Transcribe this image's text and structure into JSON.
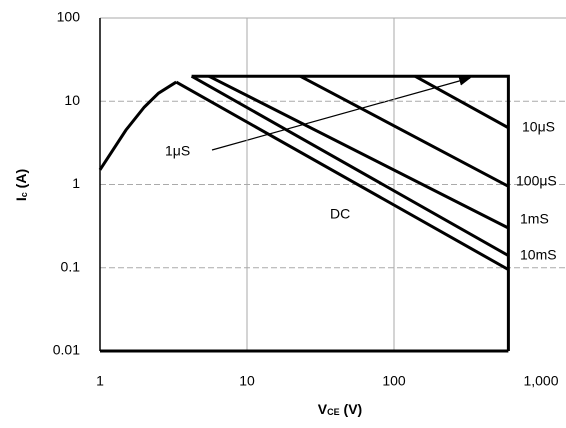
{
  "chart_data": {
    "type": "line",
    "xlabel": [
      "V",
      "CE",
      "(V)"
    ],
    "ylabel": [
      "I",
      "c",
      "(A)"
    ],
    "xscale": "log",
    "yscale": "log",
    "xlim": [
      1,
      1000
    ],
    "ylim": [
      0.01,
      100
    ],
    "xticks": [
      1,
      10,
      100,
      {
        "value": 1000,
        "label": "1,000"
      }
    ],
    "yticks": [
      0.01,
      0.1,
      1,
      10,
      100
    ],
    "grid": true,
    "series": [
      {
        "color": "#000000",
        "x": [
          1,
          1.5,
          2,
          2.5,
          3.3
        ],
        "values": [
          1.5,
          4.5,
          8.5,
          12.5,
          17
        ]
      },
      {
        "color": "#000000",
        "x": [
          4.2,
          600,
          600
        ],
        "values": [
          20,
          20,
          0.01
        ]
      },
      {
        "color": "#000000",
        "x": [
          3.3,
          600
        ],
        "values": [
          17,
          0.095
        ]
      },
      {
        "color": "#000000",
        "x": [
          4.2,
          600
        ],
        "values": [
          20,
          0.14
        ]
      },
      {
        "color": "#000000",
        "x": [
          5.5,
          600
        ],
        "values": [
          20,
          0.3
        ]
      },
      {
        "color": "#000000",
        "x": [
          23,
          600
        ],
        "values": [
          20,
          0.95
        ]
      },
      {
        "color": "#000000",
        "x": [
          139,
          600
        ],
        "values": [
          20,
          4.8
        ]
      }
    ],
    "annotations": [
      "1μS",
      "DC",
      "10μS",
      "100μS",
      "1mS",
      "10mS"
    ]
  }
}
